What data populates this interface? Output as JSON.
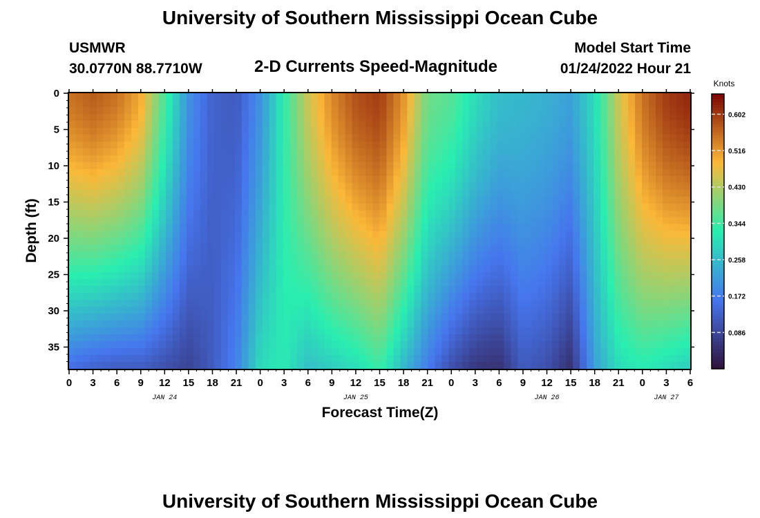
{
  "header": {
    "title": "University of Southern Mississippi Ocean Cube",
    "station_name": "USMWR",
    "station_coords": "30.0770N  88.7710W",
    "model_label": "Model Start Time",
    "model_time": "01/24/2022 Hour 21"
  },
  "footer": {
    "title": "University of Southern Mississippi Ocean Cube"
  },
  "chart_data": {
    "type": "heatmap",
    "title": "2-D Currents Speed-Magnitude",
    "xlabel": "Forecast Time(Z)",
    "ylabel": "Depth (ft)",
    "x_ticks": [
      "0",
      "3",
      "6",
      "9",
      "12",
      "15",
      "18",
      "21",
      "0",
      "3",
      "6",
      "9",
      "12",
      "15",
      "18",
      "21",
      "0",
      "3",
      "6",
      "9",
      "12",
      "15",
      "18",
      "21",
      "0",
      "3",
      "6"
    ],
    "date_labels": [
      {
        "label": "JAN 24",
        "tick_index": 4
      },
      {
        "label": "JAN 25",
        "tick_index": 12
      },
      {
        "label": "JAN 26",
        "tick_index": 20
      },
      {
        "label": "JAN 27",
        "tick_index": 25
      }
    ],
    "y_ticks": [
      0,
      5,
      10,
      15,
      20,
      25,
      30,
      35
    ],
    "ylim": [
      0,
      38
    ],
    "x_range_hours": [
      0,
      78
    ],
    "colorbar": {
      "units": "Knots",
      "ticks": [
        0.602,
        0.516,
        0.43,
        0.344,
        0.258,
        0.172,
        0.086
      ],
      "range": [
        0.0,
        0.65
      ]
    },
    "colors": {
      "min": "#30123b",
      "low": "#4676ee",
      "mid": "#29eeb0",
      "high": "#fbb838",
      "max": "#7a0403"
    },
    "surface_speed_by_hour": {
      "hours": [
        0,
        3,
        6,
        9,
        12,
        15,
        18,
        21,
        24,
        27,
        30,
        33,
        36,
        39,
        42,
        45,
        48,
        51,
        54,
        57,
        60,
        63,
        66,
        69,
        72,
        75,
        78
      ],
      "values": [
        0.55,
        0.57,
        0.55,
        0.5,
        0.35,
        0.2,
        0.13,
        0.12,
        0.2,
        0.33,
        0.45,
        0.53,
        0.58,
        0.6,
        0.52,
        0.38,
        0.36,
        0.3,
        0.26,
        0.25,
        0.24,
        0.22,
        0.3,
        0.45,
        0.55,
        0.6,
        0.62
      ]
    },
    "bottom_speed_by_hour": {
      "hours": [
        0,
        3,
        6,
        9,
        12,
        15,
        18,
        21,
        24,
        27,
        30,
        33,
        36,
        39,
        42,
        45,
        48,
        51,
        54,
        57,
        60,
        63,
        66,
        69,
        72,
        75,
        78
      ],
      "values": [
        0.15,
        0.13,
        0.12,
        0.12,
        0.1,
        0.08,
        0.12,
        0.18,
        0.3,
        0.32,
        0.26,
        0.28,
        0.3,
        0.34,
        0.25,
        0.17,
        0.1,
        0.06,
        0.05,
        0.12,
        0.1,
        0.05,
        0.22,
        0.3,
        0.32,
        0.3,
        0.28
      ]
    }
  }
}
